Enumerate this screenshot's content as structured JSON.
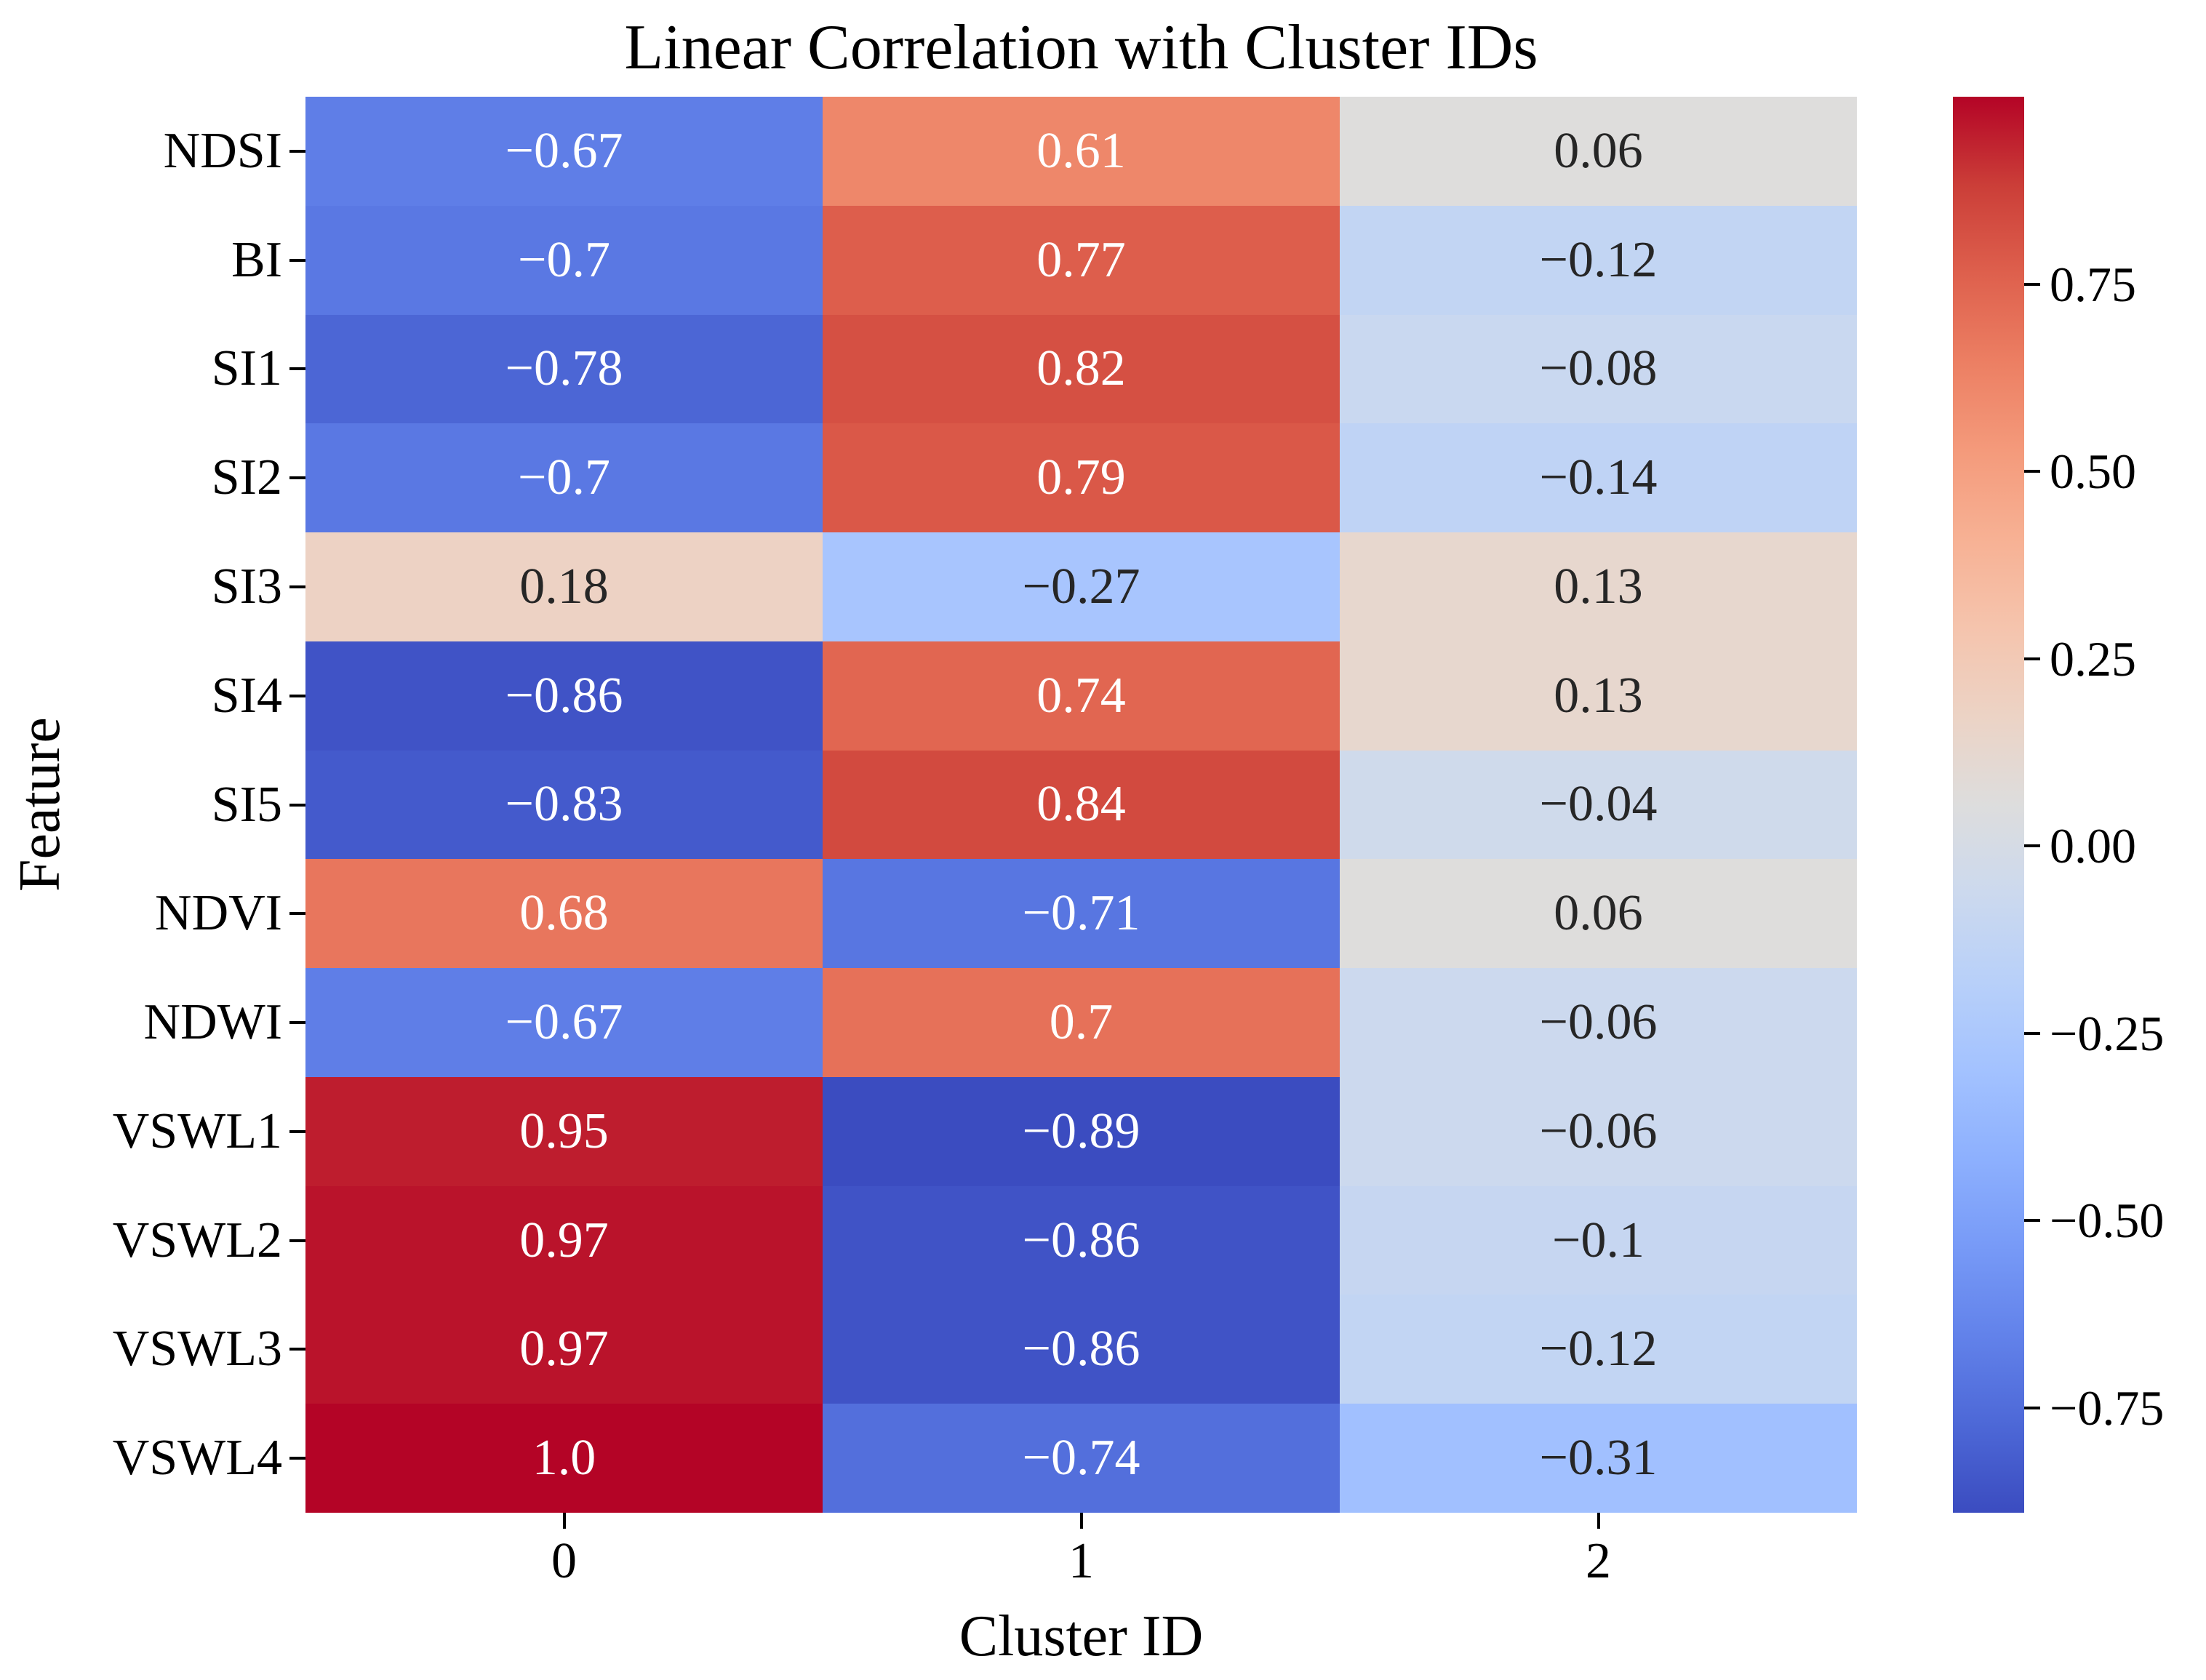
{
  "title": "Linear Correlation with Cluster IDs",
  "x_axis": {
    "label": "Cluster ID",
    "tick_labels": [
      "0",
      "1",
      "2"
    ]
  },
  "y_axis": {
    "label": "Feature",
    "tick_labels": [
      "NDSI",
      "BI",
      "SI1",
      "SI2",
      "SI3",
      "SI4",
      "SI5",
      "NDVI",
      "NDWI",
      "VSWL1",
      "VSWL2",
      "VSWL3",
      "VSWL4"
    ]
  },
  "chart_data": {
    "type": "heatmap",
    "rows": [
      "NDSI",
      "BI",
      "SI1",
      "SI2",
      "SI3",
      "SI4",
      "SI5",
      "NDVI",
      "NDWI",
      "VSWL1",
      "VSWL2",
      "VSWL3",
      "VSWL4"
    ],
    "columns": [
      "0",
      "1",
      "2"
    ],
    "values": [
      [
        -0.67,
        0.61,
        0.06
      ],
      [
        -0.7,
        0.77,
        -0.12
      ],
      [
        -0.78,
        0.82,
        -0.08
      ],
      [
        -0.7,
        0.79,
        -0.14
      ],
      [
        0.18,
        -0.27,
        0.13
      ],
      [
        -0.86,
        0.74,
        0.13
      ],
      [
        -0.83,
        0.84,
        -0.04
      ],
      [
        0.68,
        -0.71,
        0.06
      ],
      [
        -0.67,
        0.7,
        -0.06
      ],
      [
        0.95,
        -0.89,
        -0.06
      ],
      [
        0.97,
        -0.86,
        -0.1
      ],
      [
        0.97,
        -0.86,
        -0.12
      ],
      [
        1.0,
        -0.74,
        -0.31
      ]
    ],
    "colormap": "coolwarm",
    "vmin": -0.89,
    "vmax": 1.0,
    "colorbar_tick_values": [
      0.75,
      0.5,
      0.25,
      0.0,
      -0.25,
      -0.5,
      -0.75
    ],
    "colormap_anchors": [
      "#3b4cc0",
      "#4d68d7",
      "#6282ea",
      "#779af7",
      "#8db0fe",
      "#a3c2ff",
      "#b8d0f9",
      "#ccd9ee",
      "#dddddd",
      "#ecd3c5",
      "#f5c4ad",
      "#f7b194",
      "#f49a7b",
      "#ec7f63",
      "#de604d",
      "#cb3e38",
      "#b40426"
    ],
    "cell_text_light": "#ffffff",
    "cell_text_dark": "#262626",
    "legend_position": "right",
    "grid": false
  }
}
